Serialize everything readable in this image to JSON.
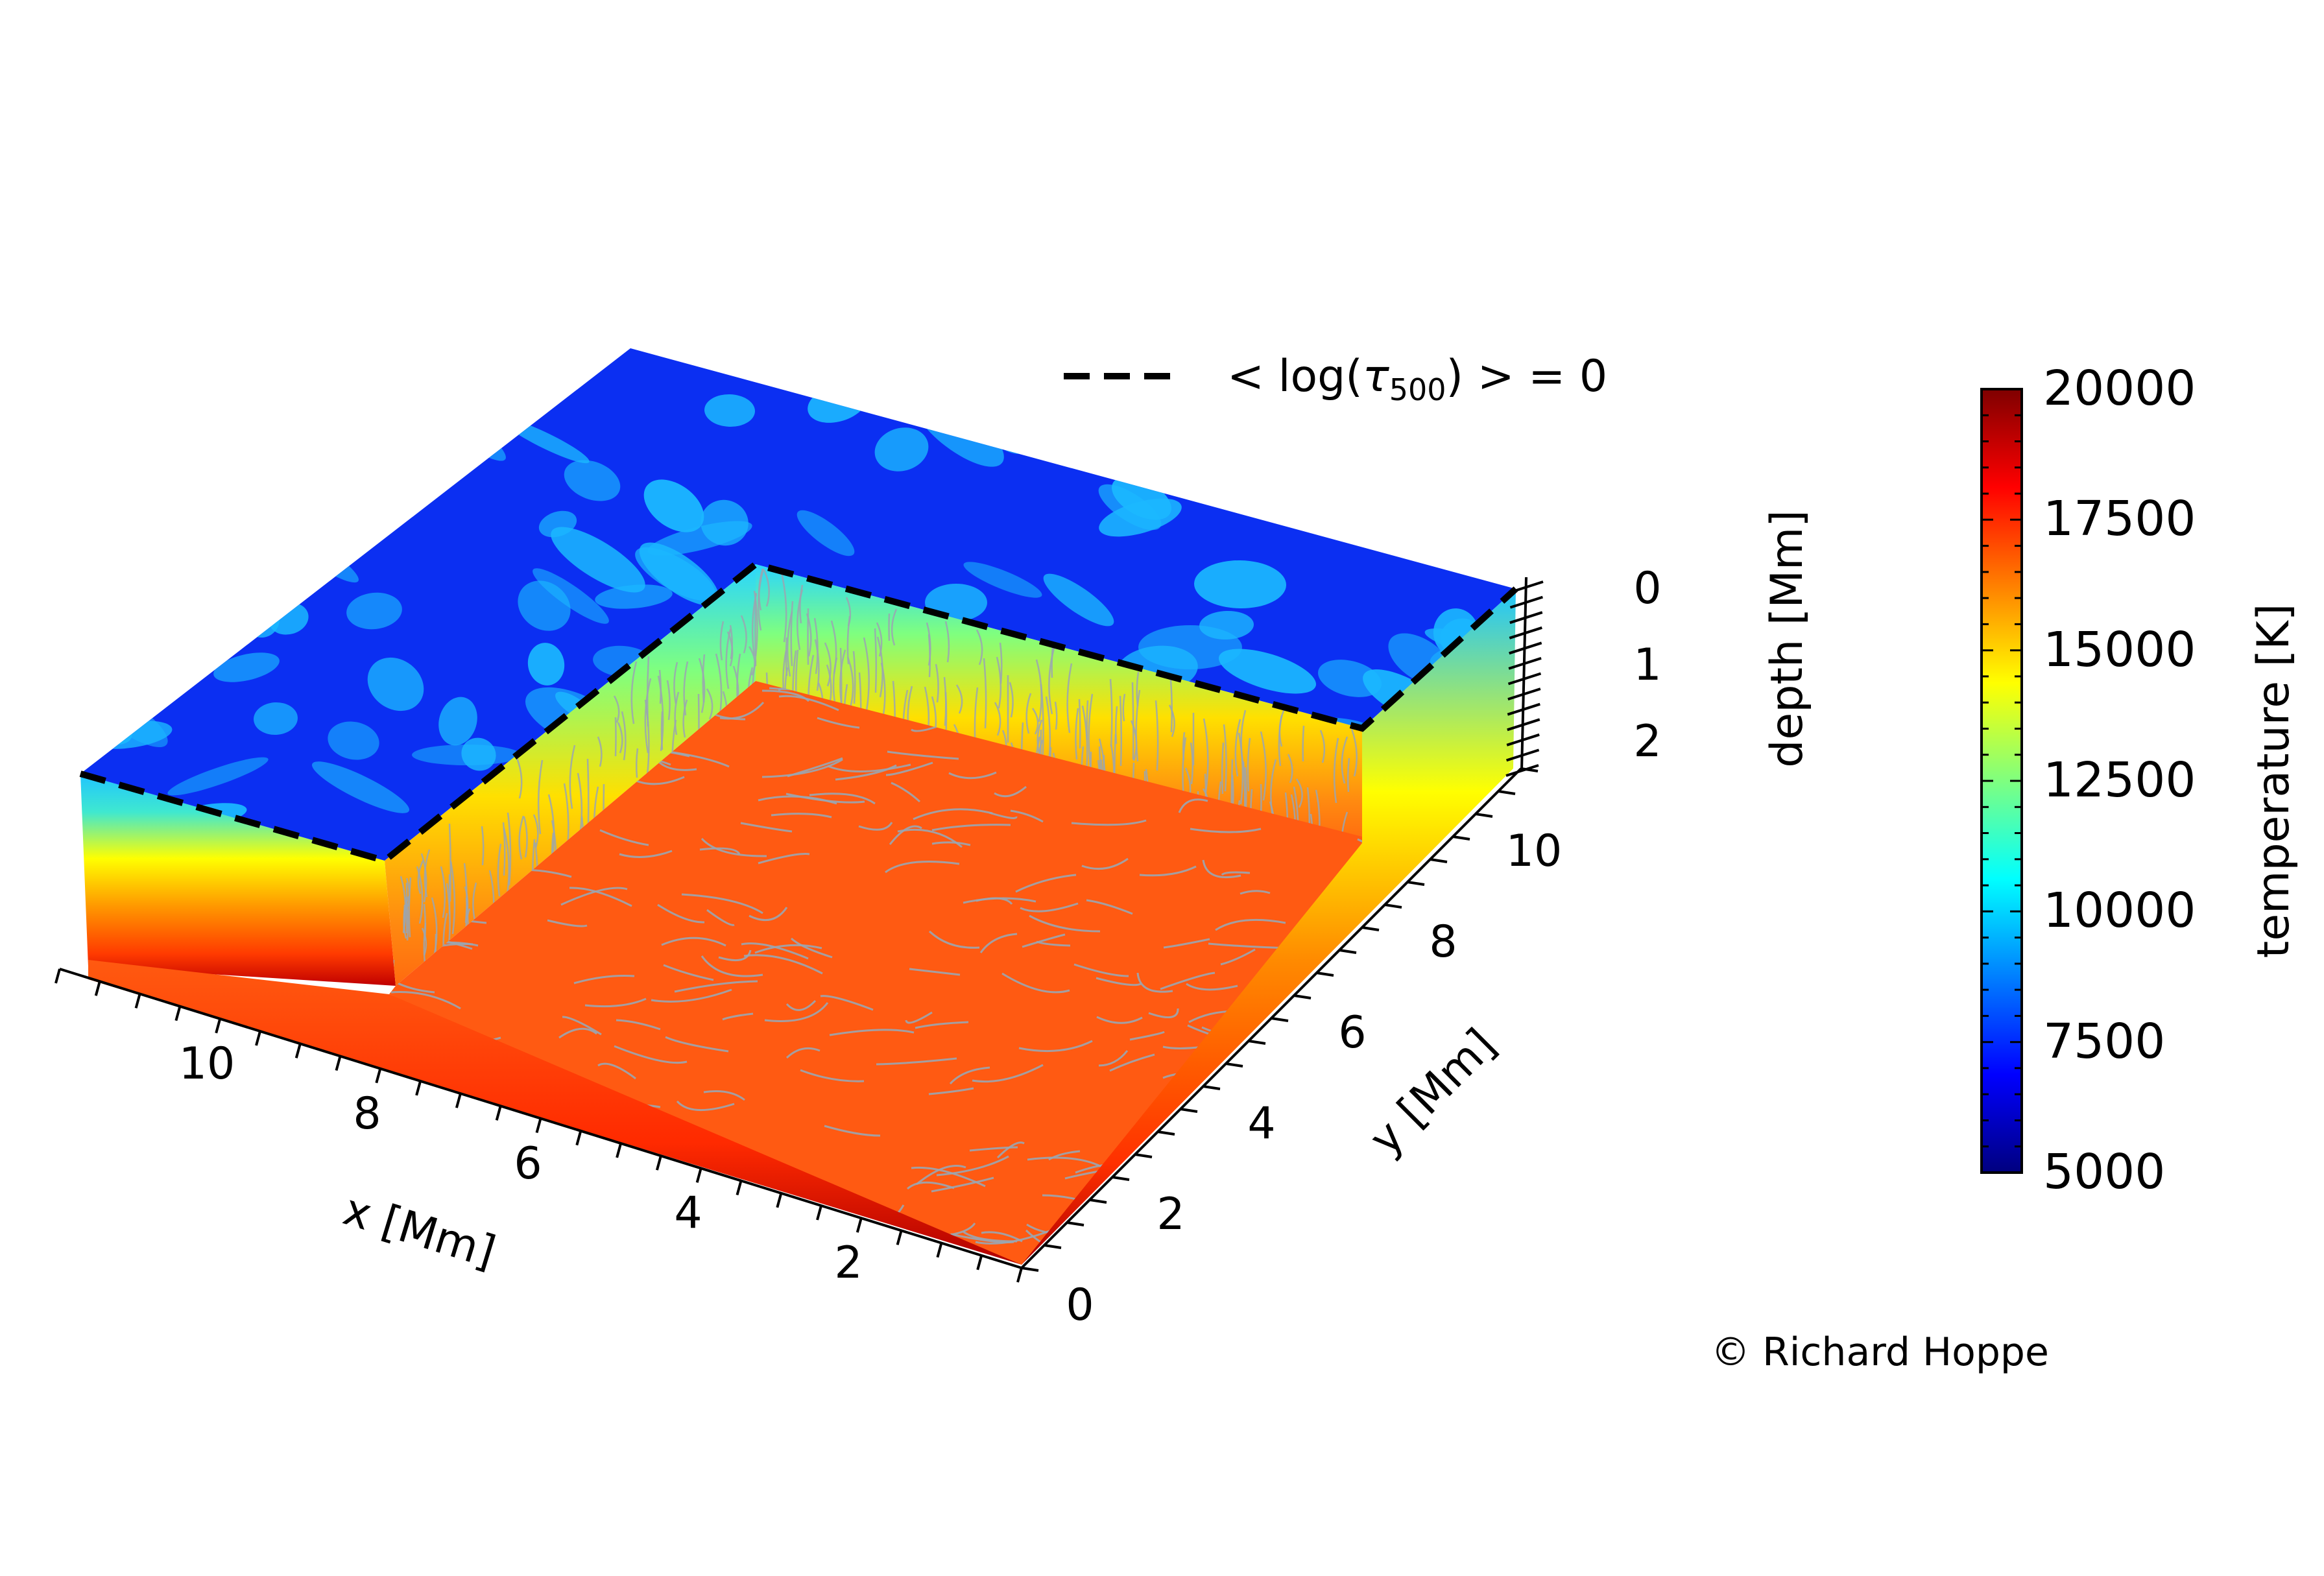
{
  "chart_data": {
    "type": "heatmap",
    "subtype": "3d-cutaway-box",
    "legend": {
      "line_style": "dashed",
      "line_color": "#000000",
      "label_prefix": "< log(",
      "label_tau": "τ",
      "label_sub": "500",
      "label_suffix": ") > = 0",
      "placement": "top-center"
    },
    "axes": {
      "x": {
        "label": "x [Mm]",
        "range": [
          0,
          12
        ],
        "ticks": [
          2,
          4,
          6,
          8,
          10
        ]
      },
      "y": {
        "label": "y [Mm]",
        "range": [
          0,
          11
        ],
        "ticks": [
          0,
          2,
          4,
          6,
          8,
          10
        ]
      },
      "z": {
        "label": "depth [Mm]",
        "range": [
          0,
          2.4
        ],
        "ticks": [
          0,
          1,
          2
        ],
        "inverted": true
      }
    },
    "colorbar": {
      "label": "temperature [K]",
      "range": [
        5000,
        20000
      ],
      "ticks": [
        5000,
        7500,
        10000,
        12500,
        15000,
        17500,
        20000
      ],
      "colormap": "jet",
      "stops": [
        "#00007f",
        "#0000ff",
        "#007fff",
        "#00ffff",
        "#7fff7f",
        "#ffff00",
        "#ff7f00",
        "#ff0000",
        "#7f0000"
      ]
    },
    "surface_colors": {
      "top": "#0a2ff0",
      "top_blobs": "#1bb8ff",
      "cut_floor": "#ff5a12",
      "streamlines": "#9aa6b2"
    },
    "grid": false
  },
  "credit": "© Richard Hoppe"
}
